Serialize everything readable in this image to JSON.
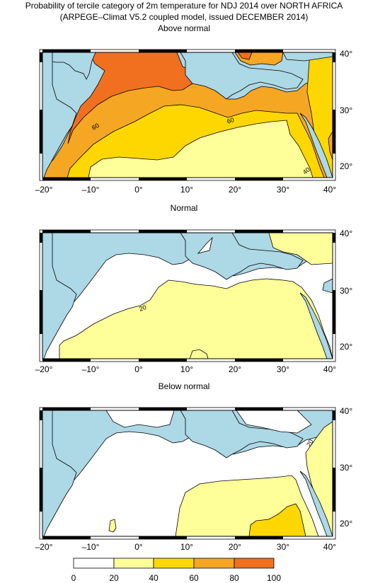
{
  "title_line1": "Probability of tercile category of 2m temperature for NDJ 2014 over NORTH AFRICA",
  "title_line2": "(ARPEGE–Climat V5.2 coupled model, issued DECEMBER 2014)",
  "panels": [
    {
      "title": "Above normal",
      "contour_labels": [
        "60",
        "60",
        "40"
      ]
    },
    {
      "title": "Normal",
      "contour_labels": [
        "20"
      ]
    },
    {
      "title": "Below normal",
      "contour_labels": [
        "20"
      ]
    }
  ],
  "x_tick_labels": [
    "–20°",
    "–10°",
    "0°",
    "10°",
    "20°",
    "30°",
    "40°"
  ],
  "y_tick_labels": [
    "40°",
    "30°",
    "20°"
  ],
  "colorbar": {
    "tick_labels": [
      "0",
      "20",
      "40",
      "60",
      "80",
      "100"
    ],
    "colors": [
      "#ffffff",
      "#ffff99",
      "#ffd700",
      "#f5a623",
      "#f07020"
    ]
  },
  "colors": {
    "sea": "#add8e6",
    "land_low": "#ffffff"
  }
}
